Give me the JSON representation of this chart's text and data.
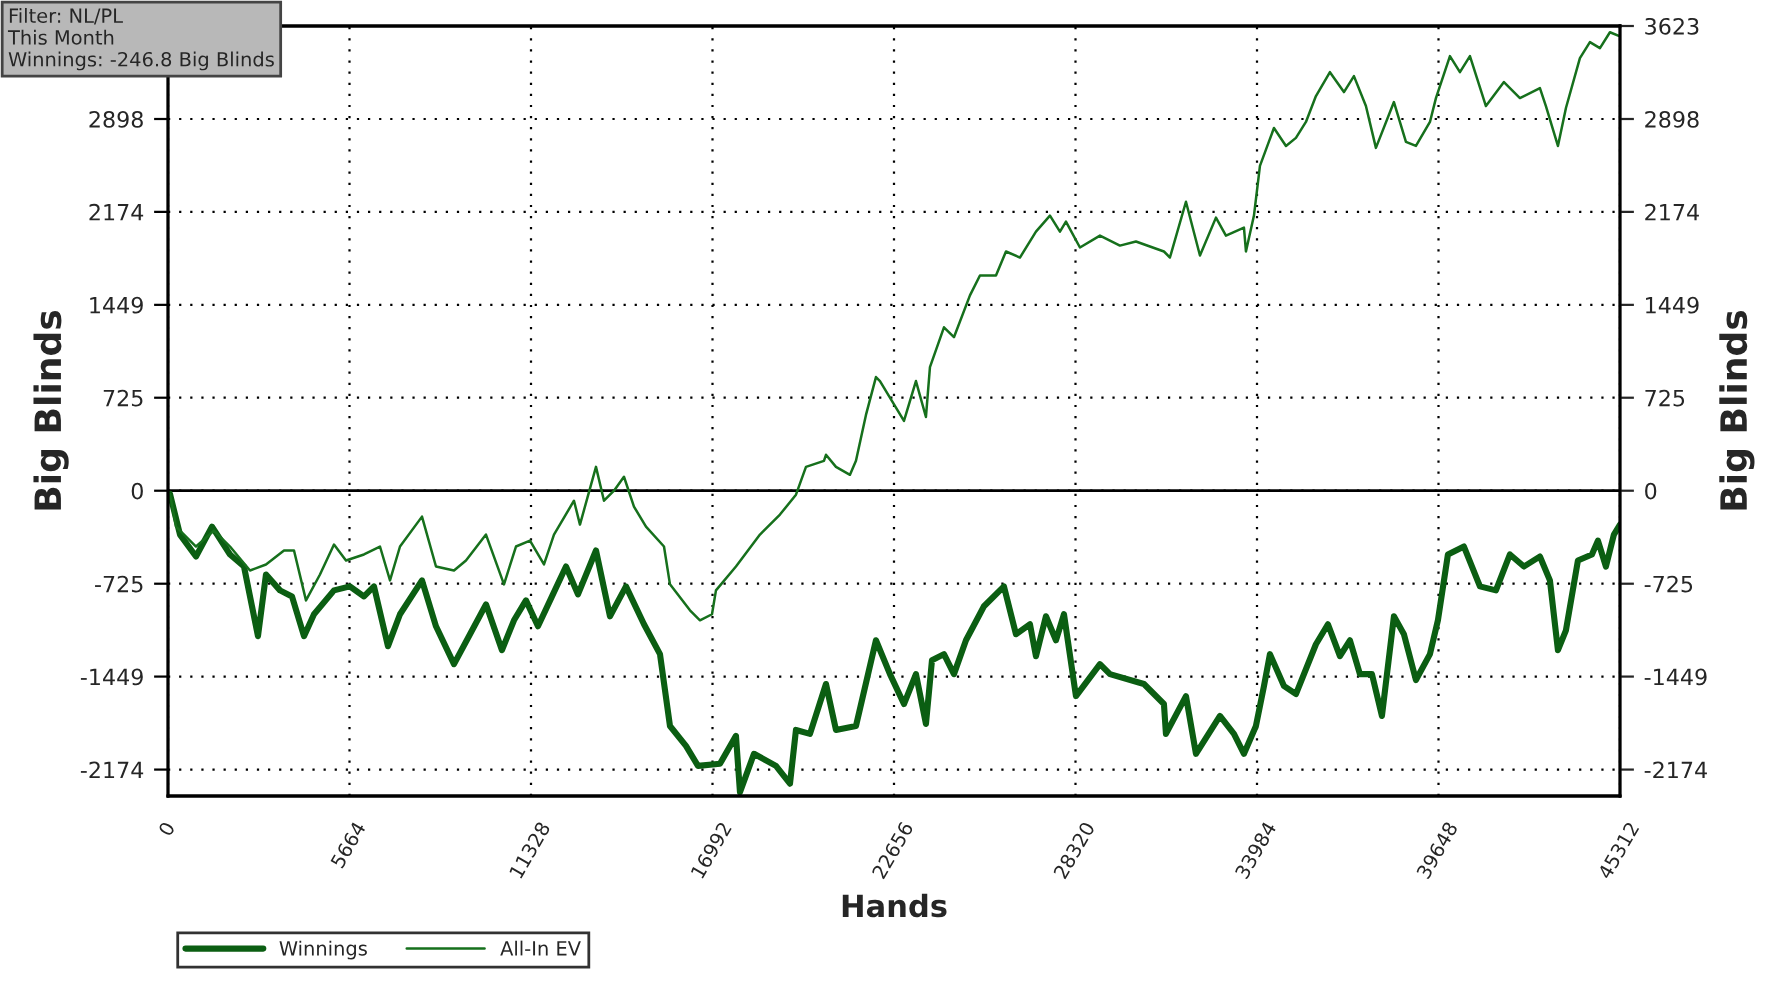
{
  "chart_data": {
    "type": "line",
    "xlabel": "Hands",
    "ylabel": "Big Blinds",
    "y2label": "Big Blinds",
    "annotations": [
      "Filter: NL/PL\nThis Month\nWinnings: -246.8 Big Blinds"
    ],
    "xlim": [
      0,
      45312
    ],
    "xticks": [
      0,
      5664,
      11328,
      16992,
      22656,
      28320,
      33984,
      39648,
      45312
    ],
    "ylim": [
      -2380,
      3623
    ],
    "yticks": [
      -2174,
      -1449,
      -725,
      0,
      725,
      1449,
      2174,
      2898,
      {
        "value": 3623,
        "label": null
      }
    ],
    "y2lim": [
      -2380,
      3623
    ],
    "y2ticks": [
      -2174,
      -1449,
      -725,
      0,
      725,
      1449,
      2174,
      2898,
      3623
    ],
    "grid": true,
    "legend": "bottom left",
    "line_style": "solid",
    "ref_lines": [
      {
        "axis": "y",
        "value": 0,
        "color": "#000000",
        "line_style": "solid"
      }
    ],
    "series": [
      {
        "name": "Winnings",
        "color": "#0b5e12",
        "x": [
          62,
          374,
          874,
          1373,
          1935,
          2372,
          2808,
          3058,
          3495,
          3869,
          4244,
          4556,
          5180,
          5679,
          6116,
          6428,
          6865,
          7240,
          7926,
          8363,
          8925,
          9424,
          9923,
          10422,
          10797,
          11171,
          11546,
          11983,
          12420,
          12794,
          13356,
          13793,
          14292,
          14854,
          15353,
          15665,
          16164,
          16539,
          17225,
          17724,
          17849,
          18286,
          18972,
          19410,
          19597,
          20034,
          20533,
          20845,
          21469,
          22093,
          22530,
          22967,
          23341,
          23653,
          23841,
          24215,
          24527,
          24902,
          25463,
          26087,
          26462,
          26899,
          27086,
          27398,
          27710,
          27960,
          28334,
          29083,
          29395,
          30456,
          31080,
          31142,
          31767,
          32079,
          32828,
          33265,
          33577,
          33951,
          34201,
          34388,
          34825,
          35199,
          35823,
          36198,
          36572,
          36884,
          37196,
          37571,
          37883,
          38257,
          38569,
          38944,
          39381,
          39630,
          39942,
          40442,
          40941,
          41440,
          41877,
          42314,
          42813,
          43125,
          43375,
          43625,
          43999,
          44436,
          44623,
          44873,
          45122,
          45312
        ],
        "values": [
          -25,
          -342,
          -513,
          -280,
          -497,
          -591,
          -1134,
          -653,
          -777,
          -824,
          -1134,
          -963,
          -777,
          -746,
          -824,
          -746,
          -1212,
          -963,
          -699,
          -1057,
          -1352,
          -1119,
          -886,
          -1243,
          -1010,
          -855,
          -1057,
          -824,
          -591,
          -808,
          -466,
          -979,
          -746,
          -1041,
          -1274,
          -1834,
          -1989,
          -2145,
          -2129,
          -1911,
          -2350,
          -2051,
          -2145,
          -2284,
          -1865,
          -1896,
          -1507,
          -1865,
          -1834,
          -1166,
          -1430,
          -1663,
          -1430,
          -1818,
          -1321,
          -1274,
          -1430,
          -1166,
          -901,
          -746,
          -1119,
          -1041,
          -1290,
          -979,
          -1166,
          -963,
          -1601,
          -1352,
          -1430,
          -1507,
          -1663,
          -1896,
          -1601,
          -2051,
          -1756,
          -1896,
          -2051,
          -1834,
          -1523,
          -1274,
          -1523,
          -1585,
          -1197,
          -1041,
          -1290,
          -1166,
          -1430,
          -1430,
          -1756,
          -979,
          -1119,
          -1476,
          -1274,
          -1010,
          -497,
          -435,
          -746,
          -777,
          -497,
          -591,
          -513,
          -699,
          -1243,
          -1088,
          -544,
          -497,
          -389,
          -591,
          -342,
          -264
        ]
      },
      {
        "name": "All-In EV",
        "color": "#16701c",
        "x": [
          62,
          250,
          874,
          1435,
          1935,
          2559,
          3058,
          3620,
          3932,
          4306,
          4743,
          5180,
          5554,
          6116,
          6615,
          6928,
          7240,
          7926,
          8363,
          8925,
          9299,
          9923,
          10485,
          10859,
          11296,
          11733,
          12045,
          12669,
          12856,
          13356,
          13606,
          13918,
          14229,
          14541,
          14916,
          15478,
          15665,
          16289,
          16601,
          16976,
          17100,
          17724,
          18473,
          19097,
          19597,
          19909,
          20470,
          20533,
          20845,
          21282,
          21469,
          21781,
          22093,
          22218,
          22967,
          23341,
          23653,
          23778,
          24215,
          24527,
          25026,
          25338,
          25838,
          26150,
          26587,
          27086,
          27523,
          27835,
          28022,
          28459,
          29083,
          29707,
          30206,
          31080,
          31267,
          31767,
          32204,
          32703,
          33015,
          33577,
          33639,
          33889,
          34076,
          34513,
          34888,
          35199,
          35511,
          35823,
          36260,
          36697,
          37009,
          37383,
          37695,
          38257,
          38632,
          38944,
          39381,
          39568,
          40005,
          40317,
          40629,
          41128,
          41690,
          42189,
          42813,
          43000,
          43375,
          43625,
          44061,
          44373,
          44686,
          44998,
          45312
        ],
        "values": [
          -25,
          -280,
          -435,
          -311,
          -435,
          -622,
          -575,
          -466,
          -466,
          -855,
          -653,
          -420,
          -544,
          -497,
          -435,
          -699,
          -435,
          -202,
          -591,
          -622,
          -544,
          -342,
          -730,
          -435,
          -389,
          -575,
          -342,
          -78,
          -264,
          186,
          -78,
          0,
          109,
          -124,
          -280,
          -435,
          -730,
          -932,
          -1010,
          -963,
          -777,
          -591,
          -342,
          -186,
          -31,
          186,
          233,
          280,
          186,
          124,
          233,
          591,
          886,
          855,
          544,
          855,
          575,
          963,
          1274,
          1197,
          1523,
          1678,
          1678,
          1865,
          1818,
          2020,
          2145,
          2020,
          2098,
          1896,
          1989,
          1911,
          1943,
          1865,
          1818,
          2253,
          1834,
          2129,
          1989,
          2051,
          1865,
          2145,
          2533,
          2828,
          2688,
          2751,
          2875,
          3077,
          3263,
          3108,
          3232,
          2999,
          2673,
          3030,
          2720,
          2688,
          2875,
          3061,
          3388,
          3263,
          3388,
          2999,
          3186,
          3061,
          3139,
          2999,
          2688,
          2984,
          3372,
          3497,
          3450,
          3574,
          3543
        ]
      }
    ]
  }
}
